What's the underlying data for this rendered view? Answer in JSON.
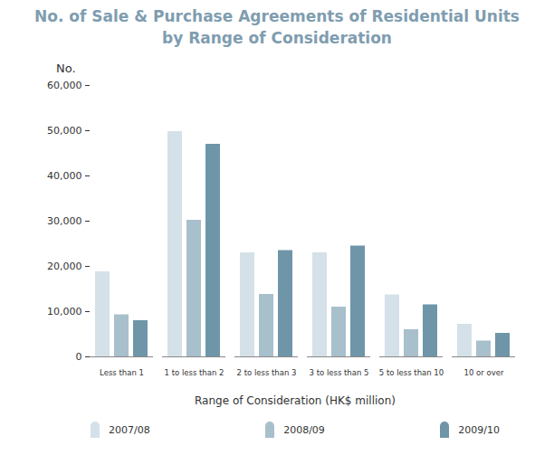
{
  "chart_data": {
    "type": "bar",
    "title": "No. of Sale & Purchase Agreements of Residential Units",
    "subtitle": "by Range of Consideration",
    "y_label": "No.",
    "x_label": "Range of Consideration (HK$ million)",
    "categories": [
      "Less than 1",
      "1 to less than 2",
      "2 to less than 3",
      "3 to less than 5",
      "5 to less than 10",
      "10 or over"
    ],
    "series": [
      {
        "name": "2007/08",
        "color": "#d5e1e9",
        "values": [
          18800,
          49800,
          23000,
          23000,
          13700,
          7200
        ]
      },
      {
        "name": "2008/09",
        "color": "#a8bfcc",
        "values": [
          9300,
          30200,
          13800,
          11000,
          6000,
          3500
        ]
      },
      {
        "name": "2009/10",
        "color": "#6e96a8",
        "values": [
          8000,
          47000,
          23500,
          24500,
          11500,
          5200
        ]
      }
    ],
    "ylim": [
      0,
      60000
    ],
    "yticks": [
      0,
      {
        "value": 10000,
        "label": "10,000"
      },
      {
        "value": 20000,
        "label": "20,000"
      },
      {
        "value": 30000,
        "label": "30,000"
      },
      {
        "value": 40000,
        "label": "40,000"
      },
      {
        "value": 50000,
        "label": "50,000"
      },
      {
        "value": 60000,
        "label": "60,000"
      }
    ],
    "grid": false,
    "legend": "bottom"
  }
}
